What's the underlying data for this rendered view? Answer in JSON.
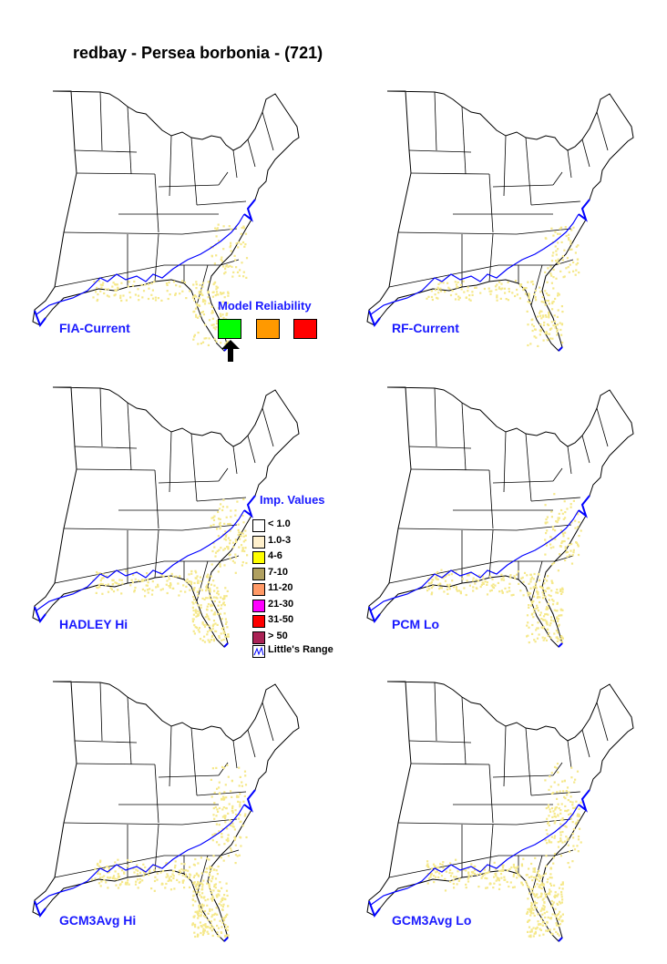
{
  "title": "redbay - Persea borbonia - (721)",
  "maps": [
    {
      "label": "FIA-Current",
      "spread": 0
    },
    {
      "label": "RF-Current",
      "spread": 0
    },
    {
      "label": "HADLEY Hi",
      "spread": 1
    },
    {
      "label": "PCM Lo",
      "spread": 1
    },
    {
      "label": "GCM3Avg Hi",
      "spread": 2
    },
    {
      "label": "GCM3Avg Lo",
      "spread": 2
    }
  ],
  "reliability": {
    "title": "Model Reliability",
    "colors": [
      "#00ff00",
      "#ff9900",
      "#ff0000"
    ],
    "selected_index": 0,
    "arrow_icon": "up-arrow-icon"
  },
  "legend": {
    "title": "Imp. Values",
    "items": [
      {
        "label": "< 1.0",
        "color": "#ffffff"
      },
      {
        "label": "1.0-3",
        "color": "#fff0cc"
      },
      {
        "label": "4-6",
        "color": "#ffff00"
      },
      {
        "label": "7-10",
        "color": "#b0a060"
      },
      {
        "label": "11-20",
        "color": "#ff9966"
      },
      {
        "label": "21-30",
        "color": "#ff00ff"
      },
      {
        "label": "31-50",
        "color": "#ff0000"
      },
      {
        "label": "> 50",
        "color": "#aa2255"
      }
    ],
    "range_label": "Little's Range",
    "range_color": "#0000ff"
  },
  "colors": {
    "label": "#1a1aff",
    "range_line": "#0000ff",
    "importance": "#f5e88a"
  }
}
